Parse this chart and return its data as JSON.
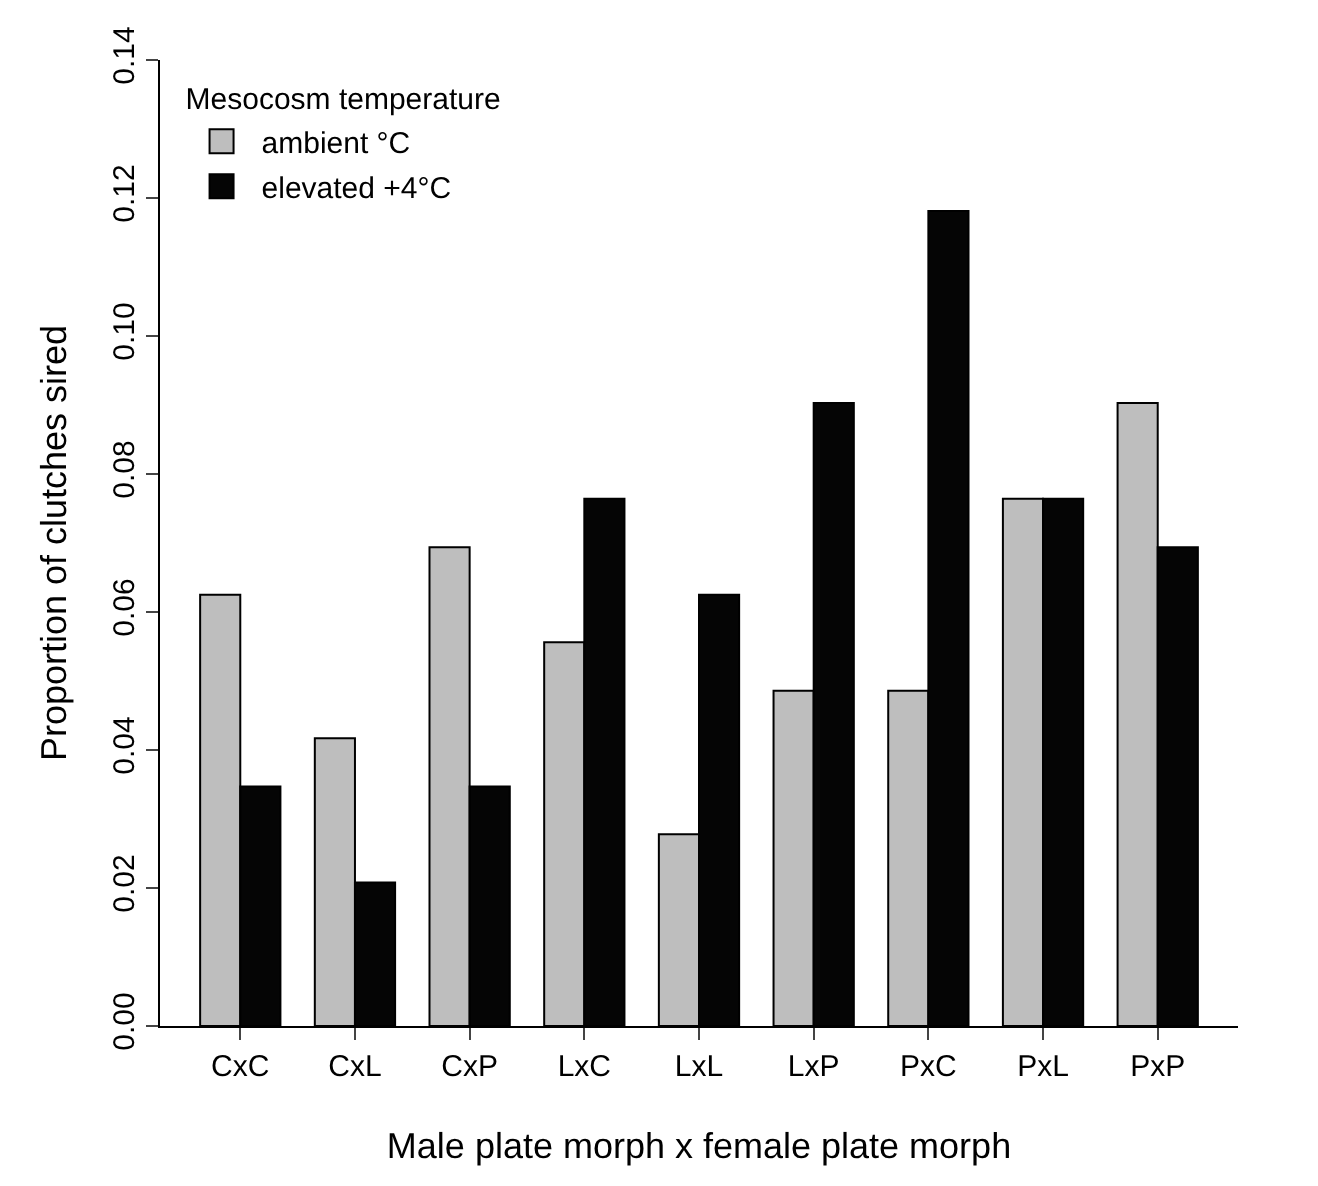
{
  "chart_data": {
    "type": "bar",
    "xlabel": "Male plate morph x female plate morph",
    "ylabel": "Proportion of clutches sired",
    "legend_title": "Mesocosm temperature",
    "categories": [
      "CxC",
      "CxL",
      "CxP",
      "LxC",
      "LxL",
      "LxP",
      "PxC",
      "PxL",
      "PxP"
    ],
    "series": [
      {
        "name": "ambient °C",
        "color": "#bebebe",
        "values": [
          0.0625,
          0.0417,
          0.0694,
          0.0556,
          0.0278,
          0.0486,
          0.0486,
          0.0764,
          0.0903
        ]
      },
      {
        "name": "elevated +4°C",
        "color": "#050505",
        "values": [
          0.0347,
          0.0208,
          0.0347,
          0.0764,
          0.0625,
          0.0903,
          0.1181,
          0.0764,
          0.0694
        ]
      }
    ],
    "ylim": [
      0,
      0.14
    ],
    "yticks": [
      {
        "value": 0,
        "label": "0.00"
      },
      {
        "value": 0.02,
        "label": "0.02"
      },
      {
        "value": 0.04,
        "label": "0.04"
      },
      {
        "value": 0.06,
        "label": "0.06"
      },
      {
        "value": 0.08,
        "label": "0.08"
      },
      {
        "value": 0.1,
        "label": "0.10"
      },
      {
        "value": 0.12,
        "label": "0.12"
      },
      {
        "value": 0.14,
        "label": "0.14"
      }
    ],
    "legend": "top left"
  }
}
